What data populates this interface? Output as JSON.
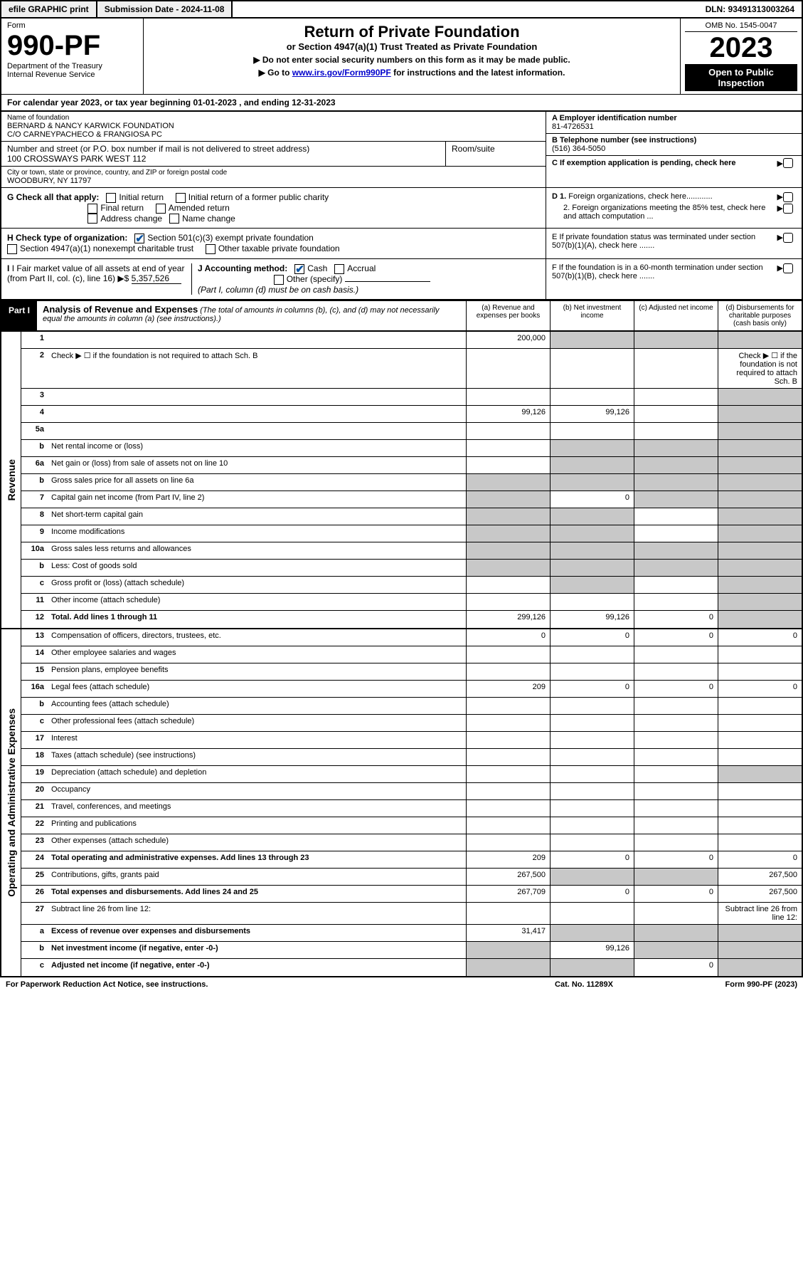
{
  "top": {
    "efile": "efile GRAPHIC print",
    "submission": "Submission Date - 2024-11-08",
    "dln": "DLN: 93491313003264"
  },
  "header": {
    "form_label": "Form",
    "form_num": "990-PF",
    "dept": "Department of the Treasury",
    "irs": "Internal Revenue Service",
    "title": "Return of Private Foundation",
    "subtitle": "or Section 4947(a)(1) Trust Treated as Private Foundation",
    "note1": "▶ Do not enter social security numbers on this form as it may be made public.",
    "note2_pre": "▶ Go to ",
    "note2_link": "www.irs.gov/Form990PF",
    "note2_post": " for instructions and the latest information.",
    "omb": "OMB No. 1545-0047",
    "year": "2023",
    "open": "Open to Public Inspection"
  },
  "calendar": "For calendar year 2023, or tax year beginning 01-01-2023                               , and ending 12-31-2023",
  "info": {
    "name_label": "Name of foundation",
    "name1": "BERNARD & NANCY KARWICK FOUNDATION",
    "name2": "C/O CARNEYPACHECO & FRANGIOSA PC",
    "addr_label": "Number and street (or P.O. box number if mail is not delivered to street address)",
    "addr": "100 CROSSWAYS PARK WEST 112",
    "room_label": "Room/suite",
    "city_label": "City or town, state or province, country, and ZIP or foreign postal code",
    "city": "WOODBURY, NY  11797",
    "a_label": "A Employer identification number",
    "a_val": "81-4726531",
    "b_label": "B Telephone number (see instructions)",
    "b_val": "(516) 364-5050",
    "c_label": "C If exemption application is pending, check here",
    "d1_label": "D 1. Foreign organizations, check here............",
    "d2_label": "2. Foreign organizations meeting the 85% test, check here and attach computation ...",
    "e_label": "E  If private foundation status was terminated under section 507(b)(1)(A), check here .......",
    "f_label": "F  If the foundation is in a 60-month termination under section 507(b)(1)(B), check here .......",
    "g_label": "G Check all that apply:",
    "g_opts": [
      "Initial return",
      "Initial return of a former public charity",
      "Final return",
      "Amended return",
      "Address change",
      "Name change"
    ],
    "h_label": "H Check type of organization:",
    "h_opts": [
      "Section 501(c)(3) exempt private foundation",
      "Section 4947(a)(1) nonexempt charitable trust",
      "Other taxable private foundation"
    ],
    "i_label": "I Fair market value of all assets at end of year (from Part II, col. (c), line 16)",
    "i_val": "5,357,526",
    "j_label": "J Accounting method:",
    "j_opts": [
      "Cash",
      "Accrual",
      "Other (specify)"
    ],
    "j_note": "(Part I, column (d) must be on cash basis.)"
  },
  "part1": {
    "label": "Part I",
    "title": "Analysis of Revenue and Expenses",
    "note": " (The total of amounts in columns (b), (c), and (d) may not necessarily equal the amounts in column (a) (see instructions).)",
    "cols": {
      "a": "(a)   Revenue and expenses per books",
      "b": "(b)   Net investment income",
      "c": "(c)   Adjusted net income",
      "d": "(d)  Disbursements for charitable purposes (cash basis only)"
    }
  },
  "side_labels": {
    "revenue": "Revenue",
    "expenses": "Operating and Administrative Expenses"
  },
  "rows": [
    {
      "n": "1",
      "d": "",
      "a": "200,000",
      "b": "",
      "c": "",
      "sb": true,
      "sc": true,
      "sd": true
    },
    {
      "n": "2",
      "d": "Check ▶ ☐ if the foundation is not required to attach Sch. B",
      "nob": true
    },
    {
      "n": "3",
      "d": "",
      "a": "",
      "b": "",
      "c": "",
      "sd": true
    },
    {
      "n": "4",
      "d": "",
      "a": "99,126",
      "b": "99,126",
      "c": "",
      "sd": true
    },
    {
      "n": "5a",
      "d": "",
      "a": "",
      "b": "",
      "c": "",
      "sd": true
    },
    {
      "n": "b",
      "d": "Net rental income or (loss)",
      "a": "",
      "sb": true,
      "sc": true,
      "sd": true,
      "inline": true
    },
    {
      "n": "6a",
      "d": "Net gain or (loss) from sale of assets not on line 10",
      "a": "",
      "sb": true,
      "sc": true,
      "sd": true
    },
    {
      "n": "b",
      "d": "Gross sales price for all assets on line 6a",
      "sa": true,
      "sb": true,
      "sc": true,
      "sd": true,
      "inline": true
    },
    {
      "n": "7",
      "d": "Capital gain net income (from Part IV, line 2)",
      "sa": true,
      "b": "0",
      "sc": true,
      "sd": true
    },
    {
      "n": "8",
      "d": "Net short-term capital gain",
      "sa": true,
      "sb": true,
      "c": "",
      "sd": true
    },
    {
      "n": "9",
      "d": "Income modifications",
      "sa": true,
      "sb": true,
      "c": "",
      "sd": true
    },
    {
      "n": "10a",
      "d": "Gross sales less returns and allowances",
      "sa": true,
      "sb": true,
      "sc": true,
      "sd": true,
      "inline": true
    },
    {
      "n": "b",
      "d": "Less: Cost of goods sold",
      "sa": true,
      "sb": true,
      "sc": true,
      "sd": true,
      "inline": true
    },
    {
      "n": "c",
      "d": "Gross profit or (loss) (attach schedule)",
      "a": "",
      "sb": true,
      "c": "",
      "sd": true
    },
    {
      "n": "11",
      "d": "Other income (attach schedule)",
      "a": "",
      "b": "",
      "c": "",
      "sd": true
    },
    {
      "n": "12",
      "d": "Total. Add lines 1 through 11",
      "bold": true,
      "a": "299,126",
      "b": "99,126",
      "c": "0",
      "sd": true
    }
  ],
  "exp_rows": [
    {
      "n": "13",
      "d": "Compensation of officers, directors, trustees, etc.",
      "a": "0",
      "b": "0",
      "c": "0",
      "dd": "0"
    },
    {
      "n": "14",
      "d": "Other employee salaries and wages",
      "a": "",
      "b": "",
      "c": "",
      "dd": ""
    },
    {
      "n": "15",
      "d": "Pension plans, employee benefits",
      "a": "",
      "b": "",
      "c": "",
      "dd": ""
    },
    {
      "n": "16a",
      "d": "Legal fees (attach schedule)",
      "a": "209",
      "b": "0",
      "c": "0",
      "dd": "0"
    },
    {
      "n": "b",
      "d": "Accounting fees (attach schedule)",
      "a": "",
      "b": "",
      "c": "",
      "dd": ""
    },
    {
      "n": "c",
      "d": "Other professional fees (attach schedule)",
      "a": "",
      "b": "",
      "c": "",
      "dd": ""
    },
    {
      "n": "17",
      "d": "Interest",
      "a": "",
      "b": "",
      "c": "",
      "dd": ""
    },
    {
      "n": "18",
      "d": "Taxes (attach schedule) (see instructions)",
      "a": "",
      "b": "",
      "c": "",
      "dd": ""
    },
    {
      "n": "19",
      "d": "Depreciation (attach schedule) and depletion",
      "a": "",
      "b": "",
      "c": "",
      "sd": true
    },
    {
      "n": "20",
      "d": "Occupancy",
      "a": "",
      "b": "",
      "c": "",
      "dd": ""
    },
    {
      "n": "21",
      "d": "Travel, conferences, and meetings",
      "a": "",
      "b": "",
      "c": "",
      "dd": ""
    },
    {
      "n": "22",
      "d": "Printing and publications",
      "a": "",
      "b": "",
      "c": "",
      "dd": ""
    },
    {
      "n": "23",
      "d": "Other expenses (attach schedule)",
      "a": "",
      "b": "",
      "c": "",
      "dd": ""
    },
    {
      "n": "24",
      "d": "Total operating and administrative expenses. Add lines 13 through 23",
      "bold": true,
      "a": "209",
      "b": "0",
      "c": "0",
      "dd": "0"
    },
    {
      "n": "25",
      "d": "Contributions, gifts, grants paid",
      "a": "267,500",
      "sb": true,
      "sc": true,
      "dd": "267,500"
    },
    {
      "n": "26",
      "d": "Total expenses and disbursements. Add lines 24 and 25",
      "bold": true,
      "a": "267,709",
      "b": "0",
      "c": "0",
      "dd": "267,500"
    },
    {
      "n": "27",
      "d": "Subtract line 26 from line 12:",
      "nob": true
    },
    {
      "n": "a",
      "d": "Excess of revenue over expenses and disbursements",
      "bold": true,
      "a": "31,417",
      "sb": true,
      "sc": true,
      "sd": true
    },
    {
      "n": "b",
      "d": "Net investment income (if negative, enter -0-)",
      "bold": true,
      "sa": true,
      "b": "99,126",
      "sc": true,
      "sd": true
    },
    {
      "n": "c",
      "d": "Adjusted net income (if negative, enter -0-)",
      "bold": true,
      "sa": true,
      "sb": true,
      "c": "0",
      "sd": true
    }
  ],
  "footer": {
    "left": "For Paperwork Reduction Act Notice, see instructions.",
    "mid": "Cat. No. 11289X",
    "right": "Form 990-PF (2023)"
  }
}
